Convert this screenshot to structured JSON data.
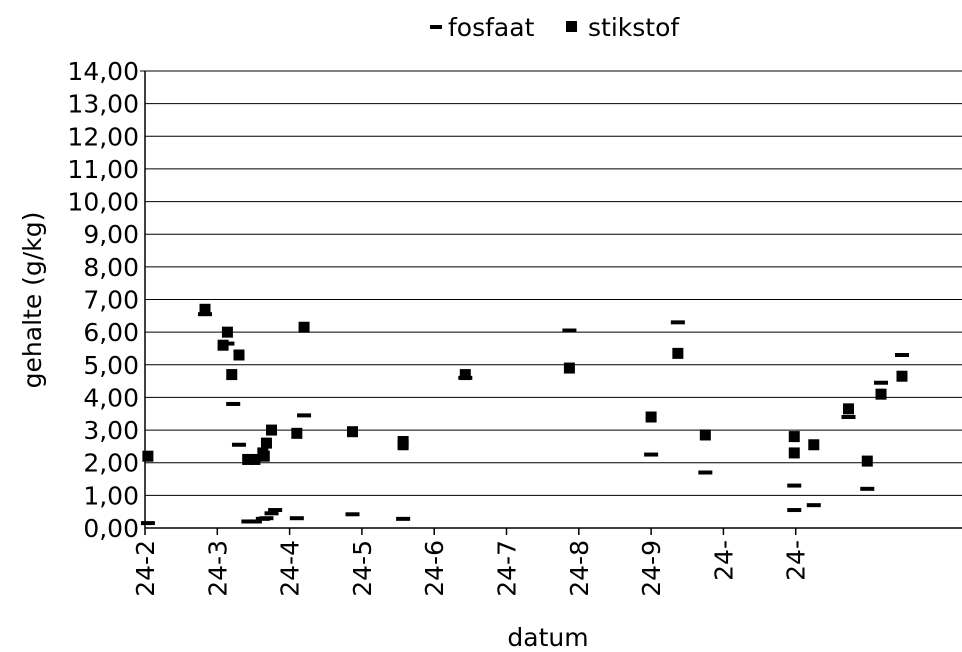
{
  "chart_data": {
    "type": "scatter",
    "title": "",
    "xlabel": "datum",
    "ylabel": "gehalte (g/kg)",
    "x_axis": {
      "ticks": [
        "24-2",
        "24-3",
        "24-4",
        "24-5",
        "24-6",
        "24-7",
        "24-8",
        "24-9",
        "24-",
        "24-"
      ],
      "range": [
        0,
        11.3
      ]
    },
    "y_axis": {
      "ticks": [
        "0,00",
        "1,00",
        "2,00",
        "3,00",
        "4,00",
        "5,00",
        "6,00",
        "7,00",
        "8,00",
        "9,00",
        "10,00",
        "11,00",
        "12,00",
        "13,00",
        "14,00"
      ],
      "range": [
        0,
        14
      ],
      "grid": true
    },
    "legend": {
      "position": "top",
      "entries": [
        {
          "label": "fosfaat",
          "marker": "dash",
          "color": "#000000"
        },
        {
          "label": "stikstof",
          "marker": "square",
          "color": "#000000"
        }
      ]
    },
    "series": [
      {
        "name": "fosfaat",
        "marker": "dash",
        "points": [
          [
            0.04,
            0.15
          ],
          [
            0.83,
            6.55
          ],
          [
            1.14,
            5.65
          ],
          [
            1.22,
            3.8
          ],
          [
            1.3,
            2.55
          ],
          [
            1.43,
            0.2
          ],
          [
            1.52,
            0.2
          ],
          [
            1.63,
            0.28
          ],
          [
            1.68,
            0.3
          ],
          [
            1.75,
            0.45
          ],
          [
            1.8,
            0.55
          ],
          [
            2.1,
            0.3
          ],
          [
            2.2,
            3.45
          ],
          [
            2.87,
            0.42
          ],
          [
            3.57,
            0.28
          ],
          [
            4.43,
            4.6
          ],
          [
            5.87,
            6.05
          ],
          [
            7.0,
            2.25
          ],
          [
            7.37,
            6.3
          ],
          [
            7.75,
            1.7
          ],
          [
            8.98,
            1.3
          ],
          [
            8.98,
            0.55
          ],
          [
            9.25,
            0.7
          ],
          [
            9.73,
            3.4
          ],
          [
            9.99,
            1.2
          ],
          [
            10.18,
            4.45
          ],
          [
            10.47,
            5.3
          ]
        ]
      },
      {
        "name": "stikstof",
        "marker": "square",
        "points": [
          [
            0.04,
            2.2
          ],
          [
            0.83,
            6.7
          ],
          [
            1.08,
            5.6
          ],
          [
            1.14,
            6.0
          ],
          [
            1.2,
            4.7
          ],
          [
            1.3,
            5.3
          ],
          [
            1.42,
            2.1
          ],
          [
            1.52,
            2.1
          ],
          [
            1.63,
            2.3
          ],
          [
            1.65,
            2.2
          ],
          [
            1.68,
            2.6
          ],
          [
            1.75,
            3.0
          ],
          [
            2.1,
            2.9
          ],
          [
            2.2,
            6.15
          ],
          [
            2.87,
            2.95
          ],
          [
            3.57,
            2.65
          ],
          [
            3.57,
            2.55
          ],
          [
            4.43,
            4.7
          ],
          [
            5.87,
            4.9
          ],
          [
            7.0,
            3.4
          ],
          [
            7.37,
            5.35
          ],
          [
            7.75,
            2.85
          ],
          [
            8.98,
            2.8
          ],
          [
            8.98,
            2.3
          ],
          [
            9.25,
            2.55
          ],
          [
            9.73,
            3.65
          ],
          [
            9.99,
            2.05
          ],
          [
            10.18,
            4.1
          ],
          [
            10.47,
            4.65
          ]
        ]
      }
    ]
  }
}
